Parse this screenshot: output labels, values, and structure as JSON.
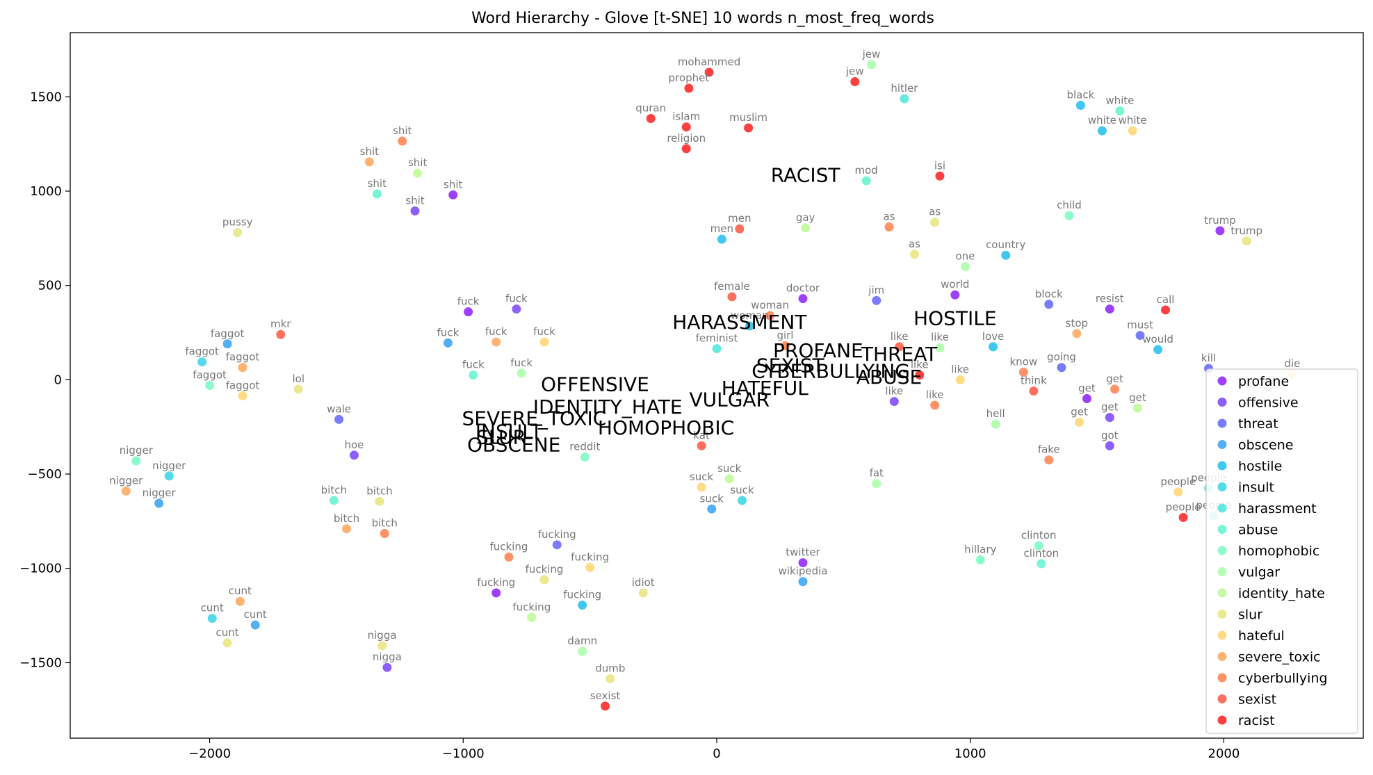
{
  "chart_data": {
    "type": "scatter",
    "title": "Word Hierarchy - Glove [t-SNE] 10 words n_most_freq_words",
    "xlabel": "",
    "ylabel": "",
    "xlim": [
      -2550,
      2550
    ],
    "ylim": [
      -1900,
      1840
    ],
    "x_ticks": [
      -2000,
      -1000,
      0,
      1000,
      2000
    ],
    "y_ticks": [
      -1500,
      -1000,
      -500,
      0,
      500,
      1000,
      1500
    ],
    "grid": false,
    "legend_position": "right",
    "legend": [
      {
        "name": "profane",
        "color": "#8000ff"
      },
      {
        "name": "offensive",
        "color": "#6629fe"
      },
      {
        "name": "threat",
        "color": "#4c50fc"
      },
      {
        "name": "obscene",
        "color": "#1996f3"
      },
      {
        "name": "hostile",
        "color": "#00b5eb"
      },
      {
        "name": "insult",
        "color": "#19cfe2"
      },
      {
        "name": "harassment",
        "color": "#33e1d6"
      },
      {
        "name": "abuse",
        "color": "#4df0c8"
      },
      {
        "name": "homophobic",
        "color": "#66f9b9"
      },
      {
        "name": "vulgar",
        "color": "#99fd97"
      },
      {
        "name": "identity_hate",
        "color": "#b3f986"
      },
      {
        "name": "slur",
        "color": "#e5e06b"
      },
      {
        "name": "hateful",
        "color": "#ffcf5c"
      },
      {
        "name": "severe_toxic",
        "color": "#ff9a44"
      },
      {
        "name": "cyberbullying",
        "color": "#ff6e34"
      },
      {
        "name": "sexist",
        "color": "#ff4126"
      },
      {
        "name": "racist",
        "color": "#ff0000"
      }
    ],
    "category_labels": [
      {
        "text": "RACIST",
        "x": 350,
        "y": 1050
      },
      {
        "text": "HARASSMENT",
        "x": 90,
        "y": 270
      },
      {
        "text": "HOSTILE",
        "x": 940,
        "y": 290
      },
      {
        "text": "PROFANE",
        "x": 400,
        "y": 120
      },
      {
        "text": "THREAT",
        "x": 720,
        "y": 100
      },
      {
        "text": "SEXIST",
        "x": 290,
        "y": 40
      },
      {
        "text": "CYBERBULLYING",
        "x": 450,
        "y": 10
      },
      {
        "text": "ABUSE",
        "x": 680,
        "y": -20
      },
      {
        "text": "HATEFUL",
        "x": 190,
        "y": -80
      },
      {
        "text": "VULGAR",
        "x": 50,
        "y": -140
      },
      {
        "text": "OFFENSIVE",
        "x": -480,
        "y": -60
      },
      {
        "text": "IDENTITY_HATE",
        "x": -430,
        "y": -180
      },
      {
        "text": "SEVERE_TOXIC",
        "x": -720,
        "y": -240
      },
      {
        "text": "HOMOPHOBIC",
        "x": -200,
        "y": -290
      },
      {
        "text": "INSULT",
        "x": -820,
        "y": -310
      },
      {
        "text": "SLUR",
        "x": -850,
        "y": -340
      },
      {
        "text": "OBSCENE",
        "x": -800,
        "y": -380
      }
    ],
    "points": [
      {
        "word": "mohammed",
        "x": -30,
        "y": 1630,
        "cat": "racist"
      },
      {
        "word": "prophet",
        "x": -110,
        "y": 1545,
        "cat": "racist"
      },
      {
        "word": "quran",
        "x": -260,
        "y": 1385,
        "cat": "racist"
      },
      {
        "word": "islam",
        "x": -120,
        "y": 1340,
        "cat": "racist"
      },
      {
        "word": "muslim",
        "x": 125,
        "y": 1335,
        "cat": "racist"
      },
      {
        "word": "religion",
        "x": -120,
        "y": 1225,
        "cat": "racist"
      },
      {
        "word": "jew",
        "x": 610,
        "y": 1670,
        "cat": "vulgar"
      },
      {
        "word": "jew",
        "x": 545,
        "y": 1580,
        "cat": "racist"
      },
      {
        "word": "hitler",
        "x": 740,
        "y": 1490,
        "cat": "harassment"
      },
      {
        "word": "black",
        "x": 1435,
        "y": 1455,
        "cat": "hostile"
      },
      {
        "word": "white",
        "x": 1590,
        "y": 1425,
        "cat": "abuse"
      },
      {
        "word": "white",
        "x": 1520,
        "y": 1320,
        "cat": "hostile"
      },
      {
        "word": "white",
        "x": 1640,
        "y": 1320,
        "cat": "hateful"
      },
      {
        "word": "shit",
        "x": -1240,
        "y": 1265,
        "cat": "cyberbullying"
      },
      {
        "word": "shit",
        "x": -1370,
        "y": 1155,
        "cat": "severe_toxic"
      },
      {
        "word": "shit",
        "x": -1180,
        "y": 1095,
        "cat": "identity_hate"
      },
      {
        "word": "shit",
        "x": -1340,
        "y": 985,
        "cat": "abuse"
      },
      {
        "word": "shit",
        "x": -1040,
        "y": 980,
        "cat": "profane"
      },
      {
        "word": "shit",
        "x": -1190,
        "y": 895,
        "cat": "offensive"
      },
      {
        "word": "isi",
        "x": 880,
        "y": 1080,
        "cat": "racist"
      },
      {
        "word": "mod",
        "x": 590,
        "y": 1055,
        "cat": "abuse"
      },
      {
        "word": "pussy",
        "x": -1890,
        "y": 780,
        "cat": "slur"
      },
      {
        "word": "child",
        "x": 1390,
        "y": 870,
        "cat": "homophobic"
      },
      {
        "word": "men",
        "x": 90,
        "y": 800,
        "cat": "sexist"
      },
      {
        "word": "men",
        "x": 20,
        "y": 745,
        "cat": "hostile"
      },
      {
        "word": "gay",
        "x": 350,
        "y": 805,
        "cat": "identity_hate"
      },
      {
        "word": "as",
        "x": 680,
        "y": 810,
        "cat": "cyberbullying"
      },
      {
        "word": "as",
        "x": 860,
        "y": 835,
        "cat": "slur"
      },
      {
        "word": "as",
        "x": 780,
        "y": 665,
        "cat": "slur"
      },
      {
        "word": "trump",
        "x": 1985,
        "y": 790,
        "cat": "profane"
      },
      {
        "word": "trump",
        "x": 2090,
        "y": 735,
        "cat": "slur"
      },
      {
        "word": "country",
        "x": 1140,
        "y": 660,
        "cat": "hostile"
      },
      {
        "word": "one",
        "x": 980,
        "y": 600,
        "cat": "vulgar"
      },
      {
        "word": "female",
        "x": 60,
        "y": 440,
        "cat": "sexist"
      },
      {
        "word": "doctor",
        "x": 340,
        "y": 430,
        "cat": "profane"
      },
      {
        "word": "jim",
        "x": 630,
        "y": 420,
        "cat": "threat"
      },
      {
        "word": "world",
        "x": 940,
        "y": 450,
        "cat": "profane"
      },
      {
        "word": "block",
        "x": 1310,
        "y": 400,
        "cat": "threat"
      },
      {
        "word": "resist",
        "x": 1550,
        "y": 375,
        "cat": "profane"
      },
      {
        "word": "call",
        "x": 1770,
        "y": 370,
        "cat": "racist"
      },
      {
        "word": "woman",
        "x": 210,
        "y": 340,
        "cat": "cyberbullying"
      },
      {
        "word": "woman",
        "x": 130,
        "y": 285,
        "cat": "hostile"
      },
      {
        "word": "fuck",
        "x": -980,
        "y": 360,
        "cat": "profane"
      },
      {
        "word": "fuck",
        "x": -790,
        "y": 375,
        "cat": "offensive"
      },
      {
        "word": "fuck",
        "x": -1060,
        "y": 195,
        "cat": "obscene"
      },
      {
        "word": "fuck",
        "x": -870,
        "y": 200,
        "cat": "severe_toxic"
      },
      {
        "word": "fuck",
        "x": -680,
        "y": 200,
        "cat": "hateful"
      },
      {
        "word": "fuck",
        "x": -960,
        "y": 25,
        "cat": "abuse"
      },
      {
        "word": "fuck",
        "x": -770,
        "y": 35,
        "cat": "vulgar"
      },
      {
        "word": "mkr",
        "x": -1720,
        "y": 240,
        "cat": "sexist"
      },
      {
        "word": "faggot",
        "x": -1930,
        "y": 190,
        "cat": "obscene"
      },
      {
        "word": "faggot",
        "x": -2030,
        "y": 95,
        "cat": "insult"
      },
      {
        "word": "faggot",
        "x": -1870,
        "y": 65,
        "cat": "severe_toxic"
      },
      {
        "word": "faggot",
        "x": -2000,
        "y": -30,
        "cat": "homophobic"
      },
      {
        "word": "faggot",
        "x": -1870,
        "y": -85,
        "cat": "hateful"
      },
      {
        "word": "lol",
        "x": -1650,
        "y": -50,
        "cat": "slur"
      },
      {
        "word": "feminist",
        "x": 0,
        "y": 165,
        "cat": "harassment"
      },
      {
        "word": "girl",
        "x": 270,
        "y": 180,
        "cat": "cyberbullying"
      },
      {
        "word": "like",
        "x": 720,
        "y": 175,
        "cat": "sexist"
      },
      {
        "word": "like",
        "x": 880,
        "y": 170,
        "cat": "vulgar"
      },
      {
        "word": "like",
        "x": 800,
        "y": 25,
        "cat": "racist"
      },
      {
        "word": "like",
        "x": 960,
        "y": 0,
        "cat": "hateful"
      },
      {
        "word": "like",
        "x": 700,
        "y": -115,
        "cat": "offensive"
      },
      {
        "word": "like",
        "x": 860,
        "y": -135,
        "cat": "cyberbullying"
      },
      {
        "word": "love",
        "x": 1090,
        "y": 175,
        "cat": "hostile"
      },
      {
        "word": "stop",
        "x": 1420,
        "y": 245,
        "cat": "severe_toxic"
      },
      {
        "word": "must",
        "x": 1670,
        "y": 235,
        "cat": "threat"
      },
      {
        "word": "would",
        "x": 1740,
        "y": 160,
        "cat": "hostile"
      },
      {
        "word": "know",
        "x": 1210,
        "y": 40,
        "cat": "cyberbullying"
      },
      {
        "word": "going",
        "x": 1360,
        "y": 65,
        "cat": "threat"
      },
      {
        "word": "kill",
        "x": 1940,
        "y": 60,
        "cat": "threat"
      },
      {
        "word": "die",
        "x": 2270,
        "y": 30,
        "cat": "hateful"
      },
      {
        "word": "think",
        "x": 1250,
        "y": -60,
        "cat": "sexist"
      },
      {
        "word": "get",
        "x": 1460,
        "y": -100,
        "cat": "profane"
      },
      {
        "word": "get",
        "x": 1570,
        "y": -50,
        "cat": "cyberbullying"
      },
      {
        "word": "get",
        "x": 1550,
        "y": -200,
        "cat": "offensive"
      },
      {
        "word": "get",
        "x": 1430,
        "y": -225,
        "cat": "hateful"
      },
      {
        "word": "get",
        "x": 1660,
        "y": -150,
        "cat": "identity_hate"
      },
      {
        "word": "got",
        "x": 1550,
        "y": -350,
        "cat": "offensive"
      },
      {
        "word": "hell",
        "x": 1100,
        "y": -235,
        "cat": "vulgar"
      },
      {
        "word": "wale",
        "x": -1490,
        "y": -210,
        "cat": "threat"
      },
      {
        "word": "hoe",
        "x": -1430,
        "y": -400,
        "cat": "offensive"
      },
      {
        "word": "reddit",
        "x": -520,
        "y": -410,
        "cat": "homophobic"
      },
      {
        "word": "kat",
        "x": -60,
        "y": -350,
        "cat": "sexist"
      },
      {
        "word": "fake",
        "x": 1310,
        "y": -425,
        "cat": "cyberbullying"
      },
      {
        "word": "fat",
        "x": 630,
        "y": -550,
        "cat": "vulgar"
      },
      {
        "word": "people",
        "x": 1820,
        "y": -595,
        "cat": "hateful"
      },
      {
        "word": "people",
        "x": 1940,
        "y": -575,
        "cat": "harassment"
      },
      {
        "word": "people",
        "x": 1840,
        "y": -730,
        "cat": "racist"
      },
      {
        "word": "people",
        "x": 1960,
        "y": -720,
        "cat": "harassment"
      },
      {
        "word": "nigger",
        "x": -2290,
        "y": -430,
        "cat": "homophobic"
      },
      {
        "word": "nigger",
        "x": -2160,
        "y": -510,
        "cat": "insult"
      },
      {
        "word": "nigger",
        "x": -2330,
        "y": -590,
        "cat": "severe_toxic"
      },
      {
        "word": "nigger",
        "x": -2200,
        "y": -655,
        "cat": "obscene"
      },
      {
        "word": "bitch",
        "x": -1510,
        "y": -640,
        "cat": "abuse"
      },
      {
        "word": "bitch",
        "x": -1330,
        "y": -645,
        "cat": "slur"
      },
      {
        "word": "bitch",
        "x": -1460,
        "y": -790,
        "cat": "severe_toxic"
      },
      {
        "word": "bitch",
        "x": -1310,
        "y": -815,
        "cat": "cyberbullying"
      },
      {
        "word": "suck",
        "x": -60,
        "y": -570,
        "cat": "hateful"
      },
      {
        "word": "suck",
        "x": 50,
        "y": -525,
        "cat": "identity_hate"
      },
      {
        "word": "suck",
        "x": -20,
        "y": -685,
        "cat": "obscene"
      },
      {
        "word": "suck",
        "x": 100,
        "y": -640,
        "cat": "insult"
      },
      {
        "word": "fucking",
        "x": -820,
        "y": -940,
        "cat": "cyberbullying"
      },
      {
        "word": "fucking",
        "x": -630,
        "y": -875,
        "cat": "threat"
      },
      {
        "word": "fucking",
        "x": -680,
        "y": -1060,
        "cat": "slur"
      },
      {
        "word": "fucking",
        "x": -500,
        "y": -995,
        "cat": "hateful"
      },
      {
        "word": "fucking",
        "x": -870,
        "y": -1130,
        "cat": "profane"
      },
      {
        "word": "fucking",
        "x": -530,
        "y": -1195,
        "cat": "hostile"
      },
      {
        "word": "fucking",
        "x": -730,
        "y": -1260,
        "cat": "identity_hate"
      },
      {
        "word": "idiot",
        "x": -290,
        "y": -1130,
        "cat": "slur"
      },
      {
        "word": "twitter",
        "x": 340,
        "y": -970,
        "cat": "profane"
      },
      {
        "word": "wikipedia",
        "x": 340,
        "y": -1070,
        "cat": "obscene"
      },
      {
        "word": "hillary",
        "x": 1040,
        "y": -955,
        "cat": "homophobic"
      },
      {
        "word": "clinton",
        "x": 1270,
        "y": -880,
        "cat": "homophobic"
      },
      {
        "word": "clinton",
        "x": 1280,
        "y": -975,
        "cat": "abuse"
      },
      {
        "word": "cunt",
        "x": -1880,
        "y": -1175,
        "cat": "severe_toxic"
      },
      {
        "word": "cunt",
        "x": -1990,
        "y": -1265,
        "cat": "insult"
      },
      {
        "word": "cunt",
        "x": -1820,
        "y": -1300,
        "cat": "obscene"
      },
      {
        "word": "cunt",
        "x": -1930,
        "y": -1395,
        "cat": "slur"
      },
      {
        "word": "nigga",
        "x": -1320,
        "y": -1410,
        "cat": "slur"
      },
      {
        "word": "nigga",
        "x": -1300,
        "y": -1525,
        "cat": "offensive"
      },
      {
        "word": "damn",
        "x": -530,
        "y": -1440,
        "cat": "vulgar"
      },
      {
        "word": "dumb",
        "x": -420,
        "y": -1585,
        "cat": "slur"
      },
      {
        "word": "sexist",
        "x": -440,
        "y": -1730,
        "cat": "racist"
      }
    ]
  }
}
